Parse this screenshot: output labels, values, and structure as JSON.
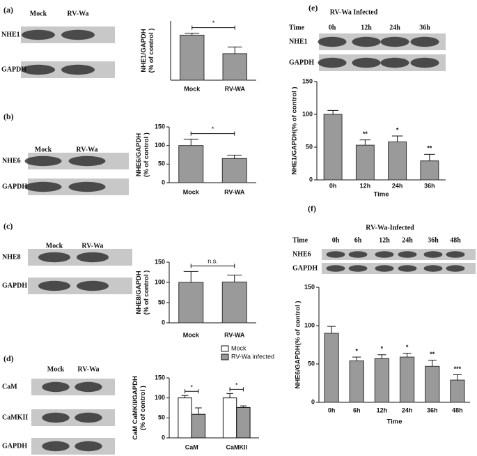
{
  "chart_data": [
    {
      "type": "bar",
      "categories": [
        "Mock",
        "RV-WA"
      ],
      "values": [
        95,
        56
      ],
      "errors": [
        4,
        14
      ],
      "color": "#9a9a9a",
      "ylim": [
        0,
        125
      ],
      "ylabel": [
        "NHE1/GAPDH",
        "(% of control )"
      ],
      "annotation": "*"
    },
    {
      "type": "bar",
      "categories": [
        "Mock",
        "RV-WA"
      ],
      "values": [
        100,
        65
      ],
      "errors": [
        17,
        9
      ],
      "color": "#9a9a9a",
      "ylim": [
        0,
        150
      ],
      "yticks": [
        0,
        50,
        100,
        150
      ],
      "ylabel": [
        "NHE6/GAPDH",
        "(% of control )"
      ],
      "annotation": "*"
    },
    {
      "type": "bar",
      "categories": [
        "Mock",
        "RV-WA"
      ],
      "values": [
        100,
        101
      ],
      "errors": [
        27,
        17
      ],
      "color": "#9a9a9a",
      "ylim": [
        0,
        150
      ],
      "yticks": [
        0,
        50,
        100,
        150
      ],
      "ylabel": [
        "NHE8/GAPDH",
        "(% of control )"
      ],
      "annotation": "n.s."
    },
    {
      "type": "grouped_bar",
      "categories": [
        "CaM",
        "CaMKII"
      ],
      "series": [
        {
          "name": "Mock",
          "color": "#ffffff",
          "values": [
            100,
            100
          ],
          "errors": [
            6,
            11
          ]
        },
        {
          "name": "RV-Wa infected",
          "color": "#9a9a9a",
          "values": [
            59,
            76
          ],
          "errors": [
            16,
            4
          ]
        }
      ],
      "ylim": [
        0,
        150
      ],
      "yticks": [
        0,
        50,
        100,
        150
      ],
      "ylabel": [
        "CaM CaMKII/GAPDH",
        "(% of control )"
      ],
      "annotations": [
        "*",
        "*"
      ]
    },
    {
      "type": "bar",
      "categories": [
        "0h",
        "12h",
        "24h",
        "36h"
      ],
      "values": [
        100,
        53,
        58,
        29
      ],
      "errors": [
        6,
        8,
        9,
        10
      ],
      "color": "#9a9a9a",
      "ylim": [
        0,
        150
      ],
      "yticks": [
        0,
        50,
        100,
        150
      ],
      "ylabel": [
        "NHE1/GAPDH(% of control )"
      ],
      "xlabel": "Time",
      "annotations": [
        null,
        "**",
        "*",
        "**"
      ]
    },
    {
      "type": "bar",
      "categories": [
        "0h",
        "6h",
        "12h",
        "24h",
        "36h",
        "48h"
      ],
      "values": [
        90,
        54,
        57,
        59,
        47,
        29
      ],
      "errors": [
        9,
        5,
        5,
        5,
        8,
        7
      ],
      "color": "#9a9a9a",
      "ylim": [
        0,
        150
      ],
      "yticks": [
        0,
        50,
        100,
        150
      ],
      "ylabel": [
        "NHE6/GAPDH(% of control )"
      ],
      "xlabel": "Time",
      "annotations": [
        null,
        "*",
        "*",
        "*",
        "**",
        "***"
      ]
    }
  ],
  "blots": [
    {
      "label": "(a)",
      "lanes": [
        "Mock",
        "RV-Wa"
      ],
      "rows": [
        "NHE1",
        "GAPDH"
      ]
    },
    {
      "label": "(b)",
      "lanes": [
        "Mock",
        "RV-Wa"
      ],
      "rows": [
        "NHE6",
        "GAPDH"
      ]
    },
    {
      "label": "(c)",
      "lanes": [
        "Mock",
        "RV-Wa"
      ],
      "rows": [
        "NHE8",
        "GAPDH"
      ]
    },
    {
      "label": "(d)",
      "lanes": [
        "Mock",
        "RV-Wa"
      ],
      "rows": [
        "CaM",
        "CaMKII",
        "GAPDH"
      ]
    },
    {
      "label": "(e)",
      "title": "RV-Wa Infected",
      "time_label": "Time",
      "lanes": [
        "0h",
        "12h",
        "24h",
        "36h"
      ],
      "rows": [
        "NHE1",
        "GAPDH"
      ]
    },
    {
      "label": "(f)",
      "title": "RV-Wa-Infected",
      "time_label": "Time",
      "lanes": [
        "0h",
        "6h",
        "12h",
        "24h",
        "36h",
        "48h"
      ],
      "rows": [
        "NHE6",
        "GAPDH"
      ]
    }
  ]
}
